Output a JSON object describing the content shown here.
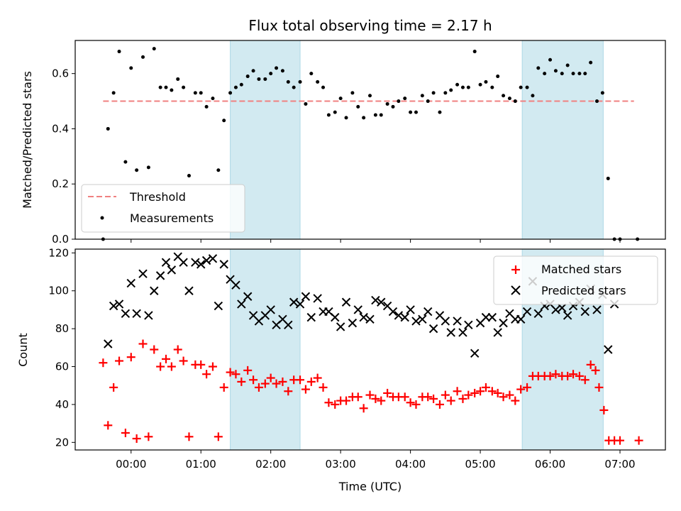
{
  "chart_data": {
    "type": "scatter",
    "title": "Flux total observing time = 2.17 h",
    "x_tick_labels": [
      "00:00",
      "01:00",
      "02:00",
      "03:00",
      "04:00",
      "05:00",
      "06:00",
      "07:00"
    ],
    "x_ticks_hours": [
      0,
      1,
      2,
      3,
      4,
      5,
      6,
      7
    ],
    "xlabel": "Time (UTC)",
    "xlim_hours": [
      -0.8,
      7.65
    ],
    "shaded_intervals_hours": [
      [
        1.42,
        2.42
      ],
      [
        5.6,
        6.76
      ]
    ],
    "shade_color": "#add8e6",
    "top": {
      "ylabel": "Matched/Predicted stars",
      "ylim": [
        0,
        0.72
      ],
      "yticks": [
        0.0,
        0.2,
        0.4,
        0.6
      ],
      "ytick_labels": [
        "0.0",
        "0.2",
        "0.4",
        "0.6"
      ],
      "threshold": {
        "name": "Threshold",
        "value": 0.5,
        "x_range_hours": [
          -0.4,
          7.2
        ],
        "color": "#f08080"
      },
      "measurements": {
        "name": "Measurements",
        "color": "#000000",
        "points": [
          [
            -0.4,
            0.0
          ],
          [
            -0.33,
            0.4
          ],
          [
            -0.25,
            0.53
          ],
          [
            -0.17,
            0.68
          ],
          [
            -0.08,
            0.28
          ],
          [
            0.0,
            0.62
          ],
          [
            0.08,
            0.25
          ],
          [
            0.17,
            0.66
          ],
          [
            0.25,
            0.26
          ],
          [
            0.33,
            0.69
          ],
          [
            0.42,
            0.55
          ],
          [
            0.5,
            0.55
          ],
          [
            0.58,
            0.54
          ],
          [
            0.67,
            0.58
          ],
          [
            0.75,
            0.55
          ],
          [
            0.83,
            0.23
          ],
          [
            0.92,
            0.53
          ],
          [
            1.0,
            0.53
          ],
          [
            1.08,
            0.48
          ],
          [
            1.17,
            0.51
          ],
          [
            1.25,
            0.25
          ],
          [
            1.33,
            0.43
          ],
          [
            1.42,
            0.53
          ],
          [
            1.5,
            0.55
          ],
          [
            1.58,
            0.56
          ],
          [
            1.67,
            0.59
          ],
          [
            1.75,
            0.61
          ],
          [
            1.83,
            0.58
          ],
          [
            1.92,
            0.58
          ],
          [
            2.0,
            0.6
          ],
          [
            2.08,
            0.62
          ],
          [
            2.17,
            0.61
          ],
          [
            2.25,
            0.57
          ],
          [
            2.33,
            0.55
          ],
          [
            2.42,
            0.57
          ],
          [
            2.5,
            0.49
          ],
          [
            2.58,
            0.6
          ],
          [
            2.67,
            0.57
          ],
          [
            2.75,
            0.55
          ],
          [
            2.83,
            0.45
          ],
          [
            2.92,
            0.46
          ],
          [
            3.0,
            0.51
          ],
          [
            3.08,
            0.44
          ],
          [
            3.17,
            0.53
          ],
          [
            3.25,
            0.48
          ],
          [
            3.33,
            0.44
          ],
          [
            3.42,
            0.52
          ],
          [
            3.5,
            0.45
          ],
          [
            3.58,
            0.45
          ],
          [
            3.67,
            0.49
          ],
          [
            3.75,
            0.48
          ],
          [
            3.83,
            0.5
          ],
          [
            3.92,
            0.51
          ],
          [
            4.0,
            0.46
          ],
          [
            4.08,
            0.46
          ],
          [
            4.17,
            0.52
          ],
          [
            4.25,
            0.5
          ],
          [
            4.33,
            0.53
          ],
          [
            4.42,
            0.46
          ],
          [
            4.5,
            0.53
          ],
          [
            4.58,
            0.54
          ],
          [
            4.67,
            0.56
          ],
          [
            4.75,
            0.55
          ],
          [
            4.83,
            0.55
          ],
          [
            4.92,
            0.68
          ],
          [
            5.0,
            0.56
          ],
          [
            5.08,
            0.57
          ],
          [
            5.17,
            0.55
          ],
          [
            5.25,
            0.59
          ],
          [
            5.33,
            0.52
          ],
          [
            5.42,
            0.51
          ],
          [
            5.5,
            0.5
          ],
          [
            5.58,
            0.55
          ],
          [
            5.67,
            0.55
          ],
          [
            5.75,
            0.52
          ],
          [
            5.83,
            0.62
          ],
          [
            5.92,
            0.6
          ],
          [
            6.0,
            0.65
          ],
          [
            6.08,
            0.61
          ],
          [
            6.17,
            0.6
          ],
          [
            6.25,
            0.63
          ],
          [
            6.33,
            0.6
          ],
          [
            6.42,
            0.6
          ],
          [
            6.5,
            0.6
          ],
          [
            6.58,
            0.64
          ],
          [
            6.67,
            0.5
          ],
          [
            6.75,
            0.53
          ],
          [
            6.83,
            0.22
          ],
          [
            6.92,
            0.0
          ],
          [
            7.0,
            0.0
          ],
          [
            7.25,
            0.0
          ]
        ]
      }
    },
    "bottom": {
      "ylabel": "Count",
      "ylim": [
        16,
        122
      ],
      "yticks": [
        20,
        40,
        60,
        80,
        100,
        120
      ],
      "ytick_labels": [
        "20",
        "40",
        "60",
        "80",
        "100",
        "120"
      ],
      "series": [
        {
          "name": "Matched stars",
          "marker": "+",
          "color": "#ff0000",
          "points": [
            [
              -0.4,
              62
            ],
            [
              -0.33,
              29
            ],
            [
              -0.25,
              49
            ],
            [
              -0.17,
              63
            ],
            [
              -0.08,
              25
            ],
            [
              0.0,
              65
            ],
            [
              0.08,
              22
            ],
            [
              0.17,
              72
            ],
            [
              0.25,
              23
            ],
            [
              0.33,
              69
            ],
            [
              0.42,
              60
            ],
            [
              0.5,
              64
            ],
            [
              0.58,
              60
            ],
            [
              0.67,
              69
            ],
            [
              0.75,
              63
            ],
            [
              0.83,
              23
            ],
            [
              0.92,
              61
            ],
            [
              1.0,
              61
            ],
            [
              1.08,
              56
            ],
            [
              1.17,
              60
            ],
            [
              1.25,
              23
            ],
            [
              1.33,
              49
            ],
            [
              1.42,
              57
            ],
            [
              1.5,
              56
            ],
            [
              1.58,
              52
            ],
            [
              1.67,
              58
            ],
            [
              1.75,
              53
            ],
            [
              1.83,
              49
            ],
            [
              1.92,
              51
            ],
            [
              2.0,
              54
            ],
            [
              2.08,
              51
            ],
            [
              2.17,
              52
            ],
            [
              2.25,
              47
            ],
            [
              2.33,
              53
            ],
            [
              2.42,
              53
            ],
            [
              2.5,
              48
            ],
            [
              2.58,
              52
            ],
            [
              2.67,
              54
            ],
            [
              2.75,
              49
            ],
            [
              2.83,
              41
            ],
            [
              2.92,
              40
            ],
            [
              3.0,
              42
            ],
            [
              3.08,
              42
            ],
            [
              3.17,
              44
            ],
            [
              3.25,
              44
            ],
            [
              3.33,
              38
            ],
            [
              3.42,
              45
            ],
            [
              3.5,
              43
            ],
            [
              3.58,
              42
            ],
            [
              3.67,
              46
            ],
            [
              3.75,
              44
            ],
            [
              3.83,
              44
            ],
            [
              3.92,
              44
            ],
            [
              4.0,
              41
            ],
            [
              4.08,
              40
            ],
            [
              4.17,
              44
            ],
            [
              4.25,
              44
            ],
            [
              4.33,
              43
            ],
            [
              4.42,
              40
            ],
            [
              4.5,
              45
            ],
            [
              4.58,
              42
            ],
            [
              4.67,
              47
            ],
            [
              4.75,
              43
            ],
            [
              4.83,
              45
            ],
            [
              4.92,
              46
            ],
            [
              5.0,
              47
            ],
            [
              5.08,
              49
            ],
            [
              5.17,
              47
            ],
            [
              5.25,
              46
            ],
            [
              5.33,
              44
            ],
            [
              5.42,
              45
            ],
            [
              5.5,
              42
            ],
            [
              5.58,
              48
            ],
            [
              5.67,
              49
            ],
            [
              5.75,
              55
            ],
            [
              5.83,
              55
            ],
            [
              5.92,
              55
            ],
            [
              6.0,
              55
            ],
            [
              6.08,
              56
            ],
            [
              6.17,
              55
            ],
            [
              6.25,
              55
            ],
            [
              6.33,
              56
            ],
            [
              6.42,
              55
            ],
            [
              6.5,
              53
            ],
            [
              6.58,
              61
            ],
            [
              6.65,
              58
            ],
            [
              6.7,
              49
            ],
            [
              6.77,
              37
            ],
            [
              6.84,
              21
            ],
            [
              6.92,
              21
            ],
            [
              7.0,
              21
            ],
            [
              7.27,
              21
            ]
          ]
        },
        {
          "name": "Predicted stars",
          "marker": "x",
          "color": "#000000",
          "points": [
            [
              -0.33,
              72
            ],
            [
              -0.25,
              92
            ],
            [
              -0.17,
              93
            ],
            [
              -0.08,
              88
            ],
            [
              0.0,
              104
            ],
            [
              0.08,
              88
            ],
            [
              0.17,
              109
            ],
            [
              0.25,
              87
            ],
            [
              0.33,
              100
            ],
            [
              0.42,
              108
            ],
            [
              0.5,
              115
            ],
            [
              0.58,
              111
            ],
            [
              0.67,
              118
            ],
            [
              0.75,
              115
            ],
            [
              0.83,
              100
            ],
            [
              0.92,
              115
            ],
            [
              1.0,
              114
            ],
            [
              1.08,
              116
            ],
            [
              1.17,
              117
            ],
            [
              1.25,
              92
            ],
            [
              1.33,
              114
            ],
            [
              1.42,
              106
            ],
            [
              1.5,
              103
            ],
            [
              1.58,
              93
            ],
            [
              1.67,
              97
            ],
            [
              1.75,
              87
            ],
            [
              1.83,
              84
            ],
            [
              1.92,
              87
            ],
            [
              2.0,
              90
            ],
            [
              2.08,
              82
            ],
            [
              2.17,
              85
            ],
            [
              2.25,
              82
            ],
            [
              2.33,
              94
            ],
            [
              2.42,
              93
            ],
            [
              2.5,
              97
            ],
            [
              2.58,
              86
            ],
            [
              2.67,
              96
            ],
            [
              2.75,
              89
            ],
            [
              2.83,
              89
            ],
            [
              2.92,
              86
            ],
            [
              3.0,
              81
            ],
            [
              3.08,
              94
            ],
            [
              3.17,
              83
            ],
            [
              3.25,
              90
            ],
            [
              3.33,
              86
            ],
            [
              3.42,
              85
            ],
            [
              3.5,
              95
            ],
            [
              3.58,
              94
            ],
            [
              3.67,
              92
            ],
            [
              3.75,
              89
            ],
            [
              3.83,
              87
            ],
            [
              3.92,
              86
            ],
            [
              4.0,
              90
            ],
            [
              4.08,
              84
            ],
            [
              4.17,
              85
            ],
            [
              4.25,
              89
            ],
            [
              4.33,
              80
            ],
            [
              4.42,
              87
            ],
            [
              4.5,
              84
            ],
            [
              4.58,
              78
            ],
            [
              4.67,
              84
            ],
            [
              4.75,
              78
            ],
            [
              4.83,
              82
            ],
            [
              4.92,
              67
            ],
            [
              5.0,
              83
            ],
            [
              5.08,
              86
            ],
            [
              5.17,
              86
            ],
            [
              5.25,
              78
            ],
            [
              5.33,
              83
            ],
            [
              5.42,
              88
            ],
            [
              5.5,
              85
            ],
            [
              5.58,
              85
            ],
            [
              5.67,
              89
            ],
            [
              5.75,
              105
            ],
            [
              5.83,
              88
            ],
            [
              5.92,
              92
            ],
            [
              6.0,
              93
            ],
            [
              6.08,
              90
            ],
            [
              6.17,
              91
            ],
            [
              6.25,
              87
            ],
            [
              6.33,
              92
            ],
            [
              6.42,
              94
            ],
            [
              6.5,
              89
            ],
            [
              6.58,
              101
            ],
            [
              6.67,
              90
            ],
            [
              6.75,
              98
            ],
            [
              6.83,
              69
            ],
            [
              6.92,
              93
            ]
          ]
        }
      ]
    }
  }
}
